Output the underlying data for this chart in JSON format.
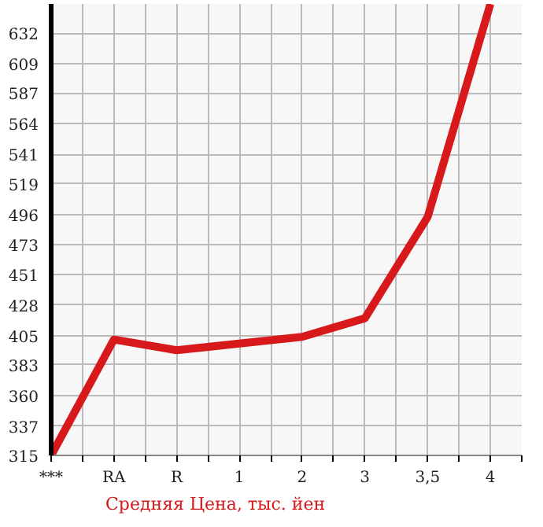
{
  "chart_data": {
    "type": "line",
    "categories": [
      "***",
      "RA",
      "R",
      "1",
      "2",
      "3",
      "3,5",
      "4"
    ],
    "series": [
      {
        "name": "Средняя Цена, тыс. йен",
        "color": "#d7191c",
        "values": [
          315,
          402,
          394,
          399,
          404,
          418,
          494,
          654
        ]
      }
    ],
    "ylim": [
      315,
      654
    ],
    "yticks": [
      315,
      337,
      360,
      383,
      405,
      428,
      451,
      473,
      496,
      519,
      541,
      564,
      587,
      609,
      632
    ],
    "grid": true,
    "legend": "bottom",
    "marker": "none",
    "line_style": "solid"
  }
}
